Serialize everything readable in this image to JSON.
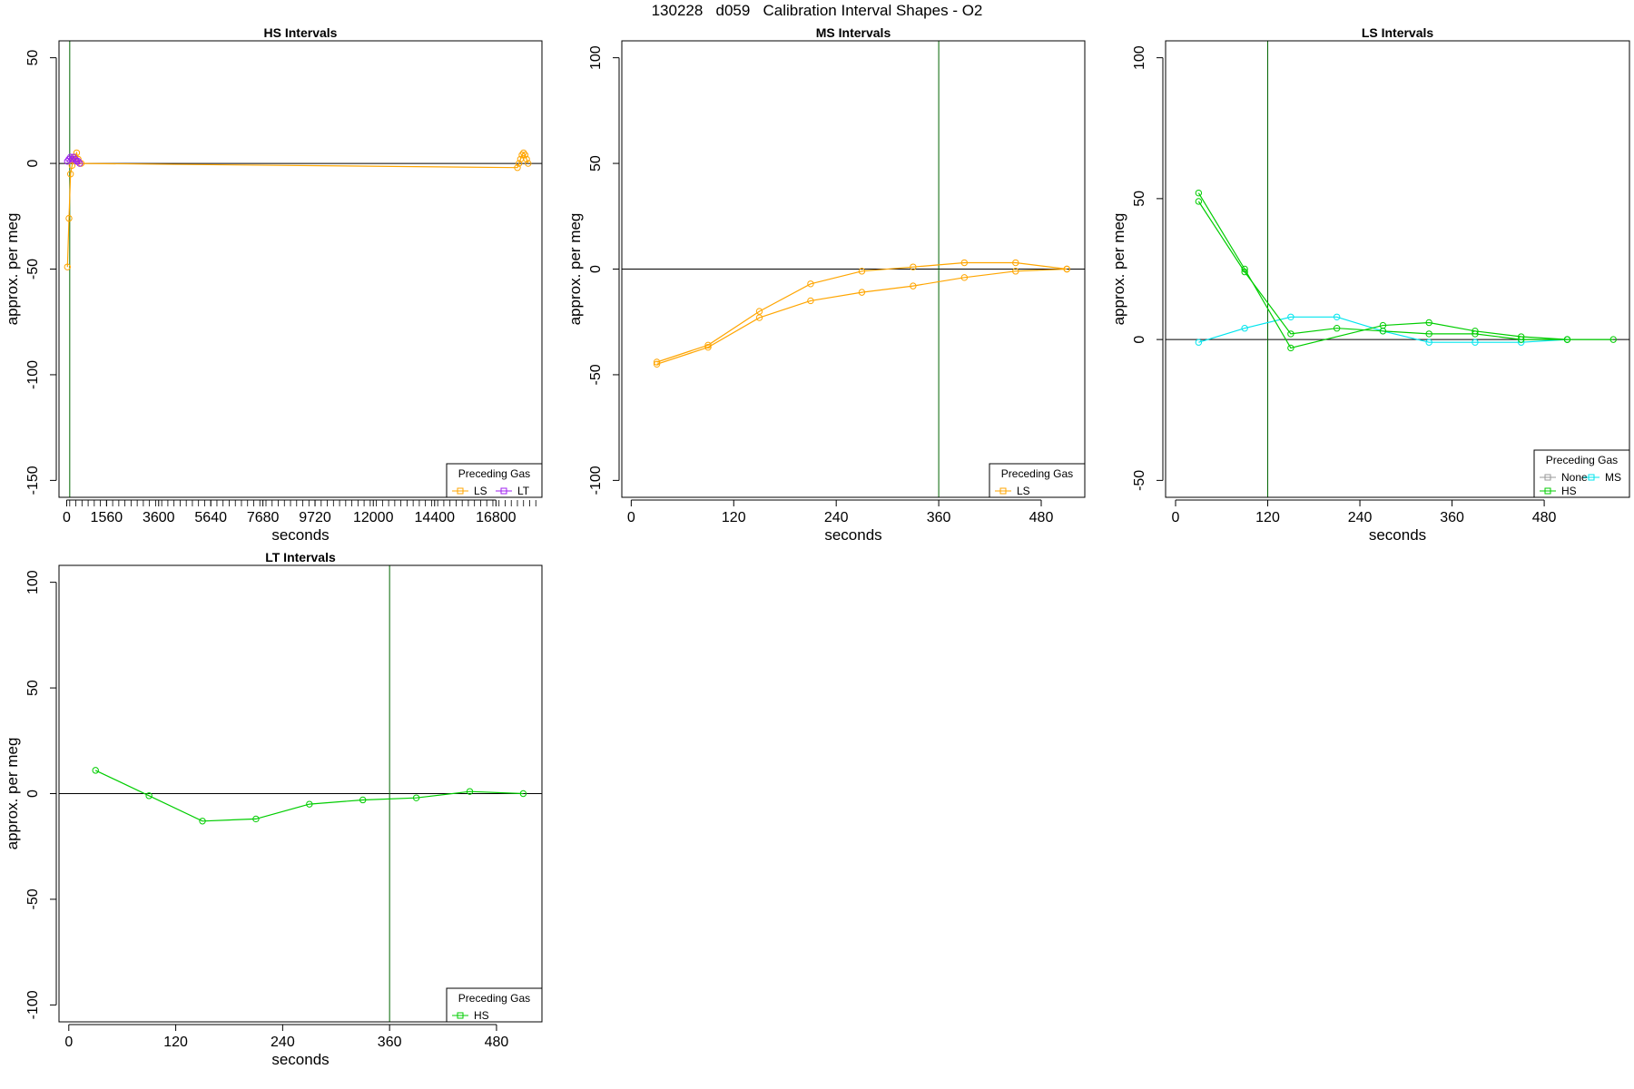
{
  "figure": {
    "title": "130228   d059   Calibration Interval Shapes - O2"
  },
  "colors": {
    "orange": "#FFA500",
    "purple": "#A020F0",
    "green": "#00CD00",
    "cyan": "#00E5EE",
    "gray": "#999999",
    "vline": "#006400",
    "zero": "#000000"
  },
  "chart_data": [
    {
      "type": "line",
      "title": "HS Intervals",
      "xlabel": "seconds",
      "ylabel": "approx. per meg",
      "xlim": [
        -300,
        18600
      ],
      "ylim": [
        -158,
        58
      ],
      "xticks": [
        0,
        1560,
        3600,
        5640,
        7680,
        9720,
        12000,
        14400,
        16800
      ],
      "yticks": [
        50,
        0,
        -50,
        -100,
        -150
      ],
      "minor_xticks": {
        "from": 120,
        "to": 18360,
        "step": 240
      },
      "vline": 120,
      "legend": {
        "title": "Preceding Gas",
        "position": "bottom-right",
        "entries": [
          {
            "label": "LS",
            "color": "orange"
          },
          {
            "label": "LT",
            "color": "purple"
          }
        ]
      },
      "series": [
        {
          "name": "LS",
          "color": "orange",
          "x": [
            30,
            90,
            150,
            210,
            270,
            330,
            390,
            450,
            510,
            570,
            17640,
            17700,
            17760,
            17820,
            17880,
            17940,
            18000,
            18060
          ],
          "y": [
            -49,
            -26,
            -5,
            -1,
            2,
            3,
            5,
            2,
            0,
            0,
            -2,
            0,
            2,
            4,
            5,
            4,
            2,
            0
          ]
        },
        {
          "name": "LT",
          "color": "purple",
          "x": [
            30,
            90,
            150,
            210,
            270,
            330,
            390,
            450,
            510
          ],
          "y": [
            1,
            2,
            3,
            2,
            3,
            2,
            1,
            1,
            0
          ]
        }
      ]
    },
    {
      "type": "line",
      "title": "MS Intervals",
      "xlabel": "seconds",
      "ylabel": "approx. per meg",
      "xlim": [
        -11,
        531
      ],
      "ylim": [
        -108,
        108
      ],
      "xticks": [
        0,
        120,
        240,
        360,
        480
      ],
      "yticks": [
        100,
        50,
        0,
        -50,
        -100
      ],
      "vline": 360,
      "legend": {
        "title": "Preceding Gas",
        "position": "bottom-right",
        "entries": [
          {
            "label": "LS",
            "color": "orange"
          }
        ]
      },
      "series": [
        {
          "name": "LS",
          "color": "orange",
          "x": [
            30,
            90,
            150,
            210,
            270,
            330,
            390,
            450,
            510
          ],
          "y": [
            -44,
            -36,
            -20,
            -7,
            -1,
            1,
            3,
            3,
            0
          ]
        },
        {
          "name": "LS",
          "color": "orange",
          "x": [
            30,
            90,
            150,
            210,
            270,
            330,
            390,
            450,
            510
          ],
          "y": [
            -45,
            -37,
            -23,
            -15,
            -11,
            -8,
            -4,
            -1,
            0
          ]
        }
      ]
    },
    {
      "type": "line",
      "title": "LS Intervals",
      "xlabel": "seconds",
      "ylabel": "approx. per meg",
      "xlim": [
        -13,
        591
      ],
      "ylim": [
        -56,
        106
      ],
      "xticks": [
        0,
        120,
        240,
        360,
        480
      ],
      "yticks": [
        100,
        50,
        0,
        -50
      ],
      "vline": 120,
      "legend": {
        "title": "Preceding Gas",
        "position": "bottom-right",
        "entries": [
          {
            "label": "None",
            "color": "gray"
          },
          {
            "label": "MS",
            "color": "cyan"
          },
          {
            "label": "HS",
            "color": "green"
          }
        ]
      },
      "series": [
        {
          "name": "MS",
          "color": "cyan",
          "x": [
            30,
            90,
            150,
            210,
            270,
            330,
            390,
            450,
            510
          ],
          "y": [
            -1,
            4,
            8,
            8,
            3,
            -1,
            -1,
            -1,
            0
          ]
        },
        {
          "name": "HS",
          "color": "green",
          "x": [
            30,
            90,
            150,
            210,
            270,
            330,
            390,
            450,
            510,
            570
          ],
          "y": [
            49,
            24,
            2,
            4,
            3,
            2,
            2,
            0,
            0,
            0
          ]
        },
        {
          "name": "HS",
          "color": "green",
          "x": [
            30,
            90,
            150,
            270,
            330,
            390,
            450,
            510
          ],
          "y": [
            52,
            25,
            -3,
            5,
            6,
            3,
            1,
            0
          ]
        }
      ]
    },
    {
      "type": "line",
      "title": "LT Intervals",
      "xlabel": "seconds",
      "ylabel": "approx. per meg",
      "xlim": [
        -11,
        531
      ],
      "ylim": [
        -108,
        108
      ],
      "xticks": [
        0,
        120,
        240,
        360,
        480
      ],
      "yticks": [
        100,
        50,
        0,
        -50,
        -100
      ],
      "vline": 360,
      "legend": {
        "title": "Preceding Gas",
        "position": "bottom-right",
        "entries": [
          {
            "label": "HS",
            "color": "green"
          }
        ]
      },
      "series": [
        {
          "name": "HS",
          "color": "green",
          "x": [
            30,
            90,
            150,
            210,
            270,
            330,
            390,
            450,
            510
          ],
          "y": [
            11,
            -1,
            -13,
            -12,
            -5,
            -3,
            -2,
            1,
            0
          ]
        }
      ]
    }
  ]
}
